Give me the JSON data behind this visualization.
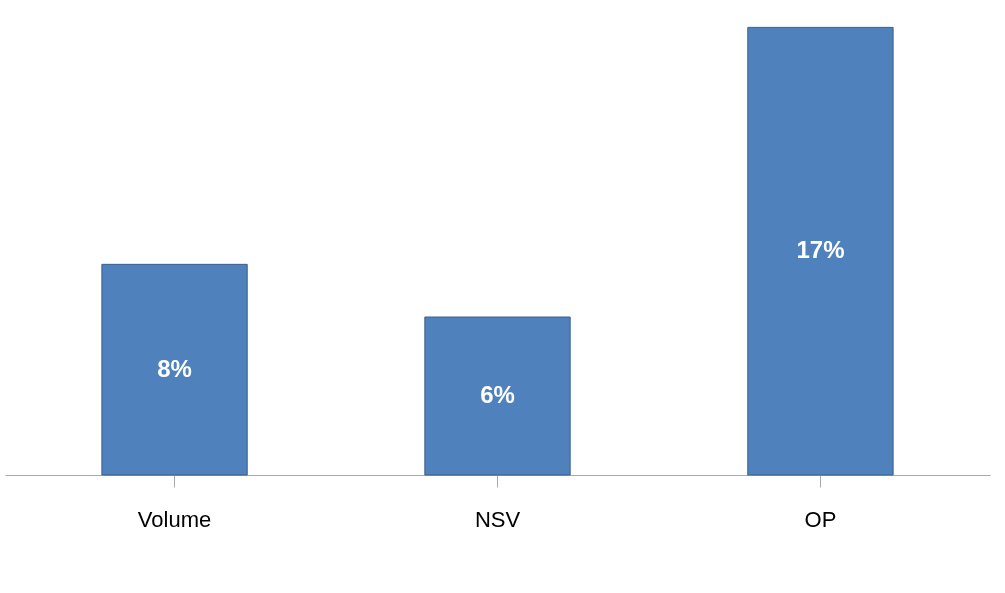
{
  "chart_data": {
    "type": "bar",
    "categories": [
      "Volume",
      "NSV",
      "OP"
    ],
    "values": [
      8,
      6,
      17
    ],
    "color": "#4f81bd",
    "value_labels": [
      "8%",
      "6%",
      "17%"
    ]
  }
}
